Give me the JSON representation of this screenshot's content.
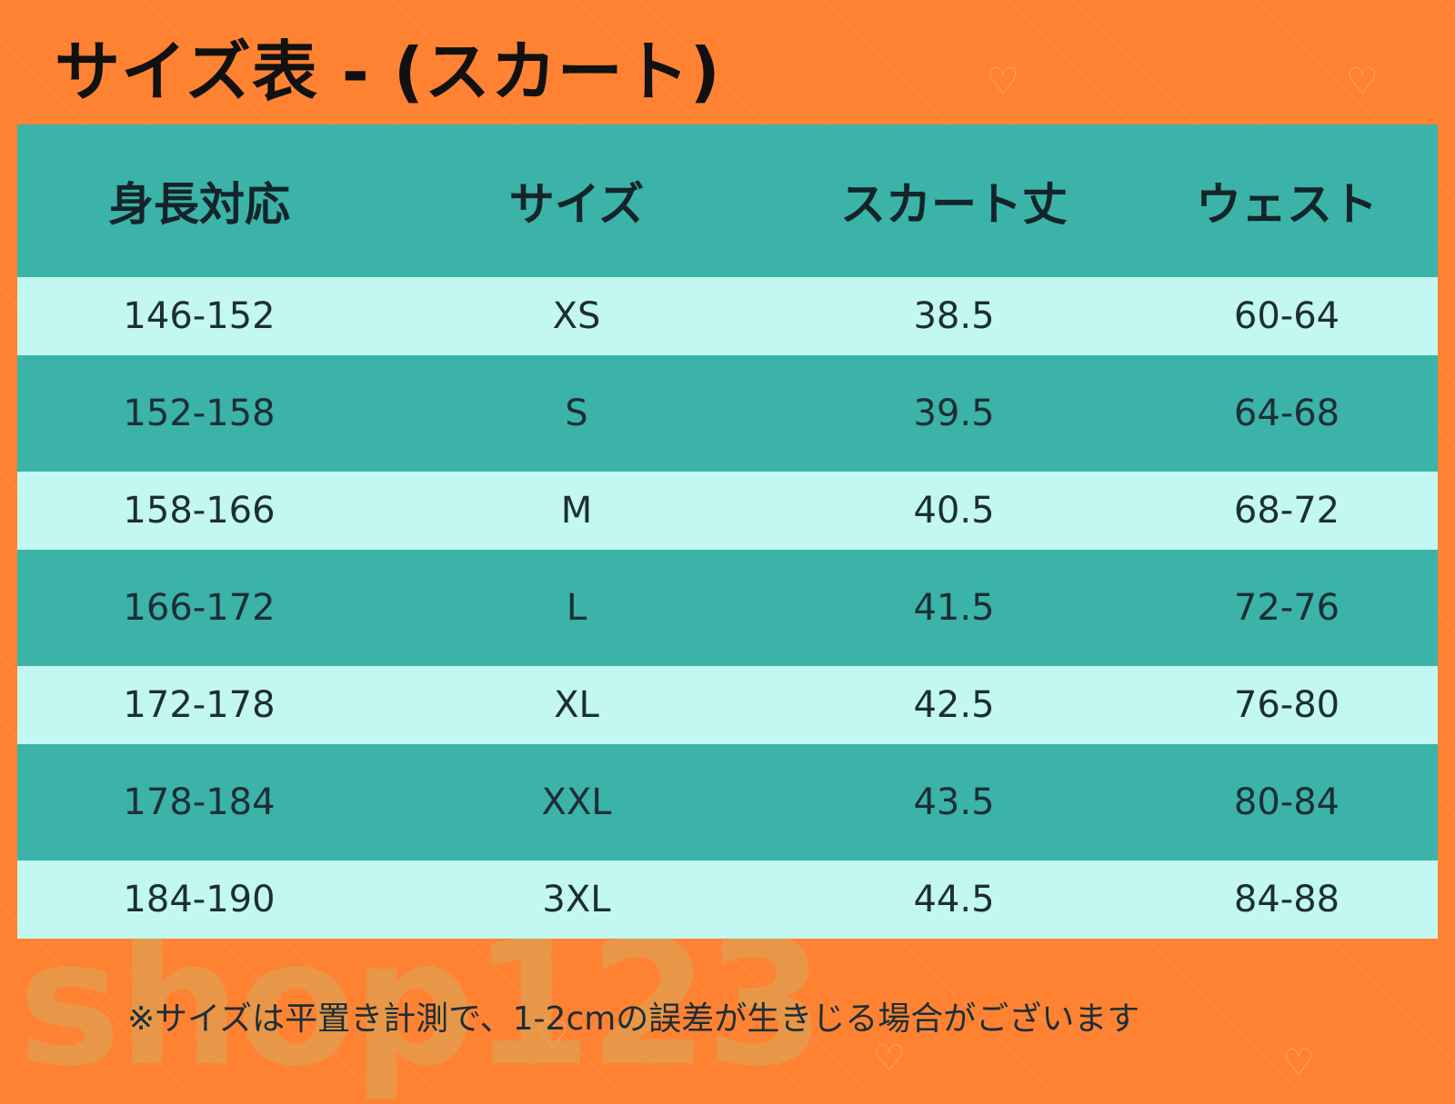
{
  "title": "サイズ表 - (スカート)",
  "table": {
    "headers": [
      "身長対応",
      "サイズ",
      "スカート丈",
      "ウェスト"
    ],
    "rows": [
      [
        "146-152",
        "XS",
        "38.5",
        "60-64"
      ],
      [
        "152-158",
        "S",
        "39.5",
        "64-68"
      ],
      [
        "158-166",
        "M",
        "40.5",
        "68-72"
      ],
      [
        "166-172",
        "L",
        "41.5",
        "72-76"
      ],
      [
        "172-178",
        "XL",
        "42.5",
        "76-80"
      ],
      [
        "178-184",
        "XXL",
        "43.5",
        "80-84"
      ],
      [
        "184-190",
        "3XL",
        "44.5",
        "84-88"
      ]
    ]
  },
  "note": "※サイズは平置き計測で、1-2cmの誤差が生きじる場合がございます",
  "watermark": "shop123",
  "colors": {
    "background": "#ff8233",
    "header_row": "#3bb3a8",
    "dark_row": "#3bb3a8",
    "light_row": "#c2f8f1"
  }
}
